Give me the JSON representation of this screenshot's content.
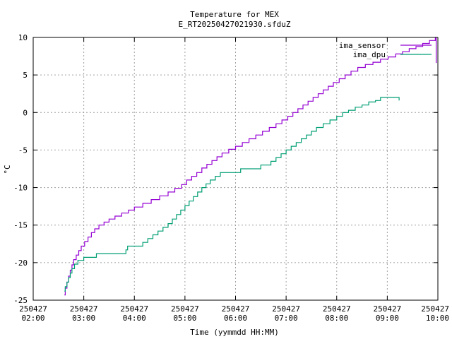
{
  "chart_data": {
    "type": "line",
    "title": "Temperature for MEX",
    "subtitle": "E_RT20250427021930.sfduZ",
    "xlabel": "Time (yymmdd HH:MM)",
    "ylabel": "°C",
    "xlim": [
      "2025-04-27 02:00",
      "2025-04-27 10:00"
    ],
    "ylim": [
      -25,
      10
    ],
    "grid": true,
    "legend_position": "top-right",
    "x_ticks": [
      {
        "date": "250427",
        "time": "02:00"
      },
      {
        "date": "250427",
        "time": "03:00"
      },
      {
        "date": "250427",
        "time": "04:00"
      },
      {
        "date": "250427",
        "time": "05:00"
      },
      {
        "date": "250427",
        "time": "06:00"
      },
      {
        "date": "250427",
        "time": "07:00"
      },
      {
        "date": "250427",
        "time": "08:00"
      },
      {
        "date": "250427",
        "time": "09:00"
      },
      {
        "date": "250427",
        "time": "10:00"
      }
    ],
    "y_ticks": [
      "-25",
      "-20",
      "-15",
      "-10",
      "-5",
      "0",
      "5",
      "10"
    ],
    "series": [
      {
        "name": "ima_sensor",
        "color": "#9400d3",
        "points": [
          [
            "2025-04-27 02:37",
            -24.3
          ],
          [
            "2025-04-27 02:38",
            -23.4
          ],
          [
            "2025-04-27 02:40",
            -22.6
          ],
          [
            "2025-04-27 02:42",
            -21.8
          ],
          [
            "2025-04-27 02:44",
            -21.0
          ],
          [
            "2025-04-27 02:46",
            -20.3
          ],
          [
            "2025-04-27 02:48",
            -19.6
          ],
          [
            "2025-04-27 02:51",
            -19.0
          ],
          [
            "2025-04-27 02:54",
            -18.4
          ],
          [
            "2025-04-27 02:57",
            -17.8
          ],
          [
            "2025-04-27 03:01",
            -17.2
          ],
          [
            "2025-04-27 03:05",
            -16.6
          ],
          [
            "2025-04-27 03:09",
            -16.0
          ],
          [
            "2025-04-27 03:13",
            -15.5
          ],
          [
            "2025-04-27 03:18",
            -15.0
          ],
          [
            "2025-04-27 03:24",
            -14.6
          ],
          [
            "2025-04-27 03:30",
            -14.2
          ],
          [
            "2025-04-27 03:37",
            -13.8
          ],
          [
            "2025-04-27 03:45",
            -13.4
          ],
          [
            "2025-04-27 03:53",
            -13.0
          ],
          [
            "2025-04-27 04:00",
            -12.6
          ],
          [
            "2025-04-27 04:10",
            -12.1
          ],
          [
            "2025-04-27 04:20",
            -11.6
          ],
          [
            "2025-04-27 04:30",
            -11.1
          ],
          [
            "2025-04-27 04:40",
            -10.6
          ],
          [
            "2025-04-27 04:48",
            -10.1
          ],
          [
            "2025-04-27 04:56",
            -9.6
          ],
          [
            "2025-04-27 05:02",
            -9.0
          ],
          [
            "2025-04-27 05:08",
            -8.5
          ],
          [
            "2025-04-27 05:14",
            -8.0
          ],
          [
            "2025-04-27 05:20",
            -7.4
          ],
          [
            "2025-04-27 05:26",
            -6.9
          ],
          [
            "2025-04-27 05:32",
            -6.4
          ],
          [
            "2025-04-27 05:38",
            -5.9
          ],
          [
            "2025-04-27 05:44",
            -5.4
          ],
          [
            "2025-04-27 05:52",
            -4.9
          ],
          [
            "2025-04-27 06:00",
            -4.5
          ],
          [
            "2025-04-27 06:08",
            -4.0
          ],
          [
            "2025-04-27 06:16",
            -3.5
          ],
          [
            "2025-04-27 06:24",
            -3.0
          ],
          [
            "2025-04-27 06:32",
            -2.5
          ],
          [
            "2025-04-27 06:40",
            -2.0
          ],
          [
            "2025-04-27 06:48",
            -1.5
          ],
          [
            "2025-04-27 06:55",
            -1.0
          ],
          [
            "2025-04-27 07:02",
            -0.5
          ],
          [
            "2025-04-27 07:08",
            0.0
          ],
          [
            "2025-04-27 07:14",
            0.5
          ],
          [
            "2025-04-27 07:20",
            1.0
          ],
          [
            "2025-04-27 07:26",
            1.5
          ],
          [
            "2025-04-27 07:32",
            2.0
          ],
          [
            "2025-04-27 07:38",
            2.5
          ],
          [
            "2025-04-27 07:44",
            3.0
          ],
          [
            "2025-04-27 07:50",
            3.5
          ],
          [
            "2025-04-27 07:56",
            4.0
          ],
          [
            "2025-04-27 08:03",
            4.5
          ],
          [
            "2025-04-27 08:10",
            5.0
          ],
          [
            "2025-04-27 08:17",
            5.5
          ],
          [
            "2025-04-27 08:25",
            6.0
          ],
          [
            "2025-04-27 08:34",
            6.4
          ],
          [
            "2025-04-27 08:43",
            6.7
          ],
          [
            "2025-04-27 08:52",
            7.1
          ],
          [
            "2025-04-27 09:01",
            7.4
          ],
          [
            "2025-04-27 09:10",
            7.8
          ],
          [
            "2025-04-27 09:18",
            8.1
          ],
          [
            "2025-04-27 09:26",
            8.5
          ],
          [
            "2025-04-27 09:34",
            8.8
          ],
          [
            "2025-04-27 09:42",
            9.2
          ],
          [
            "2025-04-27 09:50",
            9.6
          ],
          [
            "2025-04-27 09:57",
            10.0
          ],
          [
            "2025-04-27 09:58",
            6.6
          ]
        ]
      },
      {
        "name": "ima_dpu",
        "color": "#009e73",
        "points": [
          [
            "2025-04-27 02:37",
            -23.8
          ],
          [
            "2025-04-27 02:38",
            -23.2
          ],
          [
            "2025-04-27 02:40",
            -22.6
          ],
          [
            "2025-04-27 02:42",
            -22.0
          ],
          [
            "2025-04-27 02:44",
            -21.4
          ],
          [
            "2025-04-27 02:46",
            -20.8
          ],
          [
            "2025-04-27 02:49",
            -20.2
          ],
          [
            "2025-04-27 02:53",
            -19.7
          ],
          [
            "2025-04-27 03:00",
            -19.3
          ],
          [
            "2025-04-27 03:15",
            -18.8
          ],
          [
            "2025-04-27 03:50",
            -18.3
          ],
          [
            "2025-04-27 03:52",
            -17.8
          ],
          [
            "2025-04-27 04:10",
            -17.3
          ],
          [
            "2025-04-27 04:16",
            -16.8
          ],
          [
            "2025-04-27 04:22",
            -16.3
          ],
          [
            "2025-04-27 04:28",
            -15.8
          ],
          [
            "2025-04-27 04:34",
            -15.3
          ],
          [
            "2025-04-27 04:40",
            -14.8
          ],
          [
            "2025-04-27 04:45",
            -14.2
          ],
          [
            "2025-04-27 04:50",
            -13.6
          ],
          [
            "2025-04-27 04:55",
            -13.0
          ],
          [
            "2025-04-27 05:00",
            -12.4
          ],
          [
            "2025-04-27 05:05",
            -11.8
          ],
          [
            "2025-04-27 05:10",
            -11.2
          ],
          [
            "2025-04-27 05:15",
            -10.6
          ],
          [
            "2025-04-27 05:20",
            -10.0
          ],
          [
            "2025-04-27 05:25",
            -9.5
          ],
          [
            "2025-04-27 05:30",
            -9.0
          ],
          [
            "2025-04-27 05:36",
            -8.5
          ],
          [
            "2025-04-27 05:42",
            -8.0
          ],
          [
            "2025-04-27 06:06",
            -7.5
          ],
          [
            "2025-04-27 06:30",
            -7.0
          ],
          [
            "2025-04-27 06:42",
            -6.5
          ],
          [
            "2025-04-27 06:48",
            -6.0
          ],
          [
            "2025-04-27 06:54",
            -5.5
          ],
          [
            "2025-04-27 07:00",
            -5.0
          ],
          [
            "2025-04-27 07:06",
            -4.5
          ],
          [
            "2025-04-27 07:12",
            -4.0
          ],
          [
            "2025-04-27 07:18",
            -3.5
          ],
          [
            "2025-04-27 07:24",
            -3.0
          ],
          [
            "2025-04-27 07:30",
            -2.5
          ],
          [
            "2025-04-27 07:36",
            -2.0
          ],
          [
            "2025-04-27 07:44",
            -1.5
          ],
          [
            "2025-04-27 07:52",
            -1.0
          ],
          [
            "2025-04-27 08:00",
            -0.5
          ],
          [
            "2025-04-27 08:07",
            0.0
          ],
          [
            "2025-04-27 08:14",
            0.3
          ],
          [
            "2025-04-27 08:22",
            0.7
          ],
          [
            "2025-04-27 08:30",
            1.0
          ],
          [
            "2025-04-27 08:38",
            1.4
          ],
          [
            "2025-04-27 08:46",
            1.6
          ],
          [
            "2025-04-27 08:52",
            2.0
          ],
          [
            "2025-04-27 09:14",
            1.6
          ]
        ]
      }
    ]
  }
}
